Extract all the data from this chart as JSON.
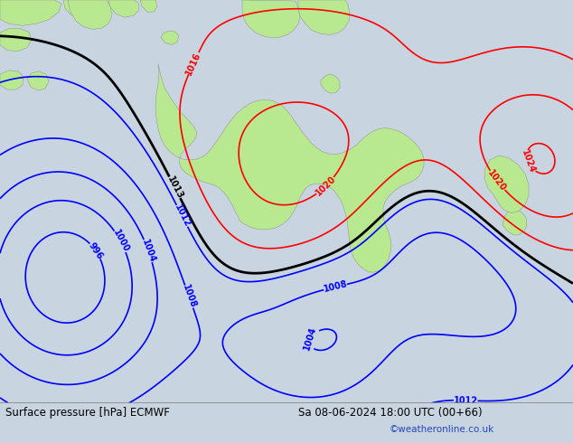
{
  "title_left": "Surface pressure [hPa] ECMWF",
  "title_right": "Sa 08-06-2024 18:00 UTC (00+66)",
  "copyright": "©weatheronline.co.uk",
  "bg_color": "#c8d4e0",
  "land_color": "#b8e890",
  "figsize": [
    6.34,
    4.9
  ],
  "dpi": 100,
  "footer_color": "#2244bb"
}
